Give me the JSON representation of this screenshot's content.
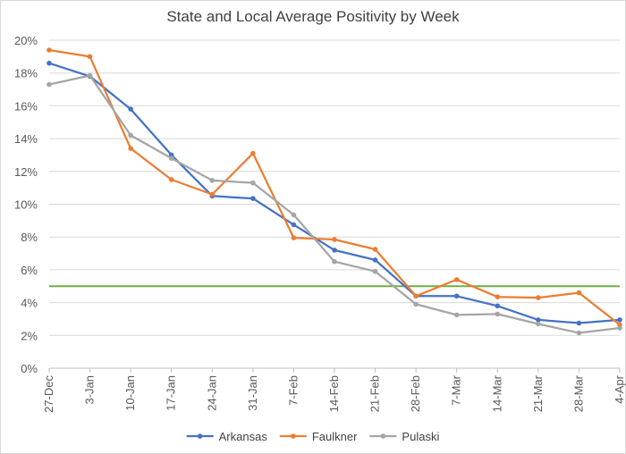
{
  "chart_data": {
    "type": "line",
    "title": "State and Local Average Positivity by Week",
    "xlabel": "",
    "ylabel": "",
    "ylim": [
      0,
      20
    ],
    "y_tick_values": [
      0,
      2,
      4,
      6,
      8,
      10,
      12,
      14,
      16,
      18,
      20
    ],
    "y_tick_labels": [
      "0%",
      "2%",
      "4%",
      "6%",
      "8%",
      "10%",
      "12%",
      "14%",
      "16%",
      "18%",
      "20%"
    ],
    "categories": [
      "27-Dec",
      "3-Jan",
      "10-Jan",
      "17-Jan",
      "24-Jan",
      "31-Jan",
      "7-Feb",
      "14-Feb",
      "21-Feb",
      "28-Feb",
      "7-Mar",
      "14-Mar",
      "21-Mar",
      "28-Mar",
      "4-Apr"
    ],
    "series": [
      {
        "name": "Arkansas",
        "color": "#4472c4",
        "values": [
          18.6,
          17.8,
          15.8,
          13.0,
          10.5,
          10.35,
          8.75,
          7.2,
          6.6,
          4.4,
          4.4,
          3.8,
          2.95,
          2.75,
          2.95
        ]
      },
      {
        "name": "Faulkner",
        "color": "#ed7d31",
        "values": [
          19.4,
          19.0,
          13.4,
          11.5,
          10.6,
          13.1,
          7.95,
          7.85,
          7.25,
          4.4,
          5.4,
          4.35,
          4.3,
          4.6,
          2.65
        ]
      },
      {
        "name": "Pulaski",
        "color": "#a5a5a5",
        "values": [
          17.3,
          17.85,
          14.2,
          12.8,
          11.45,
          11.3,
          9.35,
          6.5,
          5.9,
          3.9,
          3.25,
          3.3,
          2.7,
          2.15,
          2.45
        ]
      }
    ],
    "reference_lines": [
      {
        "value": 5,
        "color": "#70ad47"
      }
    ],
    "grid": true,
    "legend_position": "bottom"
  }
}
